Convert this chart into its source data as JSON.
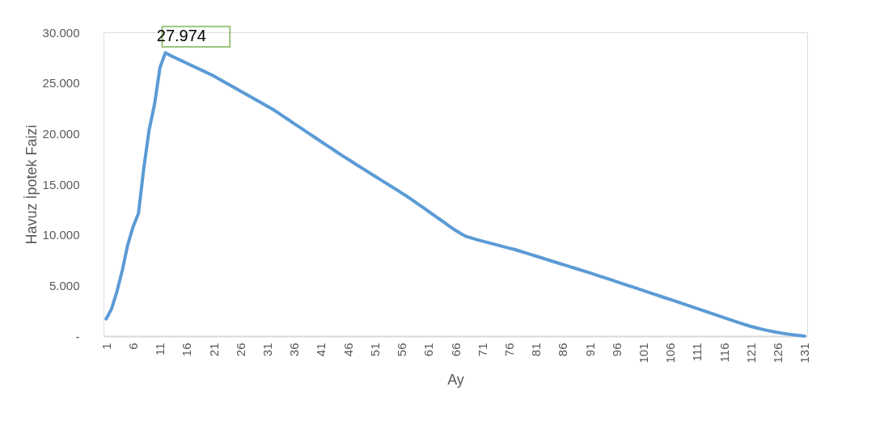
{
  "chart_data": {
    "type": "line",
    "xlabel": "Ay",
    "ylabel": "Havuz İpotek Faizi",
    "categories": [
      "1",
      null,
      null,
      null,
      null,
      "6",
      null,
      null,
      null,
      null,
      "11",
      null,
      null,
      null,
      null,
      "16",
      null,
      null,
      null,
      null,
      "21",
      null,
      null,
      null,
      null,
      "26",
      null,
      null,
      null,
      null,
      "31",
      null,
      null,
      null,
      null,
      "36",
      null,
      null,
      null,
      null,
      "41",
      null,
      null,
      null,
      null,
      "46",
      null,
      null,
      null,
      null,
      "51",
      null,
      null,
      null,
      null,
      "56",
      null,
      null,
      null,
      null,
      "61",
      null,
      null,
      null,
      null,
      "66",
      null,
      null,
      null,
      null,
      "71",
      null,
      null,
      null,
      null,
      "76",
      null,
      null,
      null,
      null,
      "81",
      null,
      null,
      null,
      null,
      "86",
      null,
      null,
      null,
      null,
      "91",
      null,
      null,
      null,
      null,
      "96",
      null,
      null,
      null,
      null,
      "101",
      null,
      null,
      null,
      null,
      "106",
      null,
      null,
      null,
      null,
      "111",
      null,
      null,
      null,
      null,
      "116",
      null,
      null,
      null,
      null,
      "121",
      null,
      null,
      null,
      null,
      "126",
      null,
      null,
      null,
      null,
      "131"
    ],
    "series": [
      {
        "color": "#5b9bd5",
        "values": [
          1700,
          2700,
          4400,
          6500,
          9000,
          10800,
          12100,
          16600,
          20400,
          22900,
          26500,
          27974,
          27700,
          27450,
          27200,
          26950,
          26700,
          26450,
          26200,
          25950,
          25700,
          25400,
          25100,
          24800,
          24500,
          24200,
          23900,
          23600,
          23300,
          23000,
          22700,
          22400,
          22050,
          21690,
          21340,
          20980,
          20630,
          20280,
          19920,
          19570,
          19210,
          18860,
          18510,
          18150,
          17800,
          17470,
          17130,
          16800,
          16470,
          16130,
          15800,
          15470,
          15130,
          14800,
          14470,
          14130,
          13800,
          13430,
          13060,
          12690,
          12310,
          11940,
          11570,
          11200,
          10800,
          10450,
          10130,
          9840,
          9680,
          9530,
          9390,
          9250,
          9110,
          8970,
          8830,
          8690,
          8560,
          8400,
          8230,
          8070,
          7900,
          7740,
          7570,
          7400,
          7240,
          7070,
          6910,
          6740,
          6580,
          6410,
          6250,
          6080,
          5900,
          5730,
          5550,
          5380,
          5200,
          5020,
          4850,
          4670,
          4500,
          4320,
          4140,
          3970,
          3790,
          3620,
          3440,
          3260,
          3080,
          2900,
          2720,
          2540,
          2360,
          2180,
          2000,
          1820,
          1640,
          1460,
          1280,
          1120,
          960,
          820,
          690,
          570,
          460,
          360,
          270,
          190,
          120,
          60,
          0
        ]
      }
    ],
    "ylim": [
      0,
      30000
    ],
    "yticks": [
      {
        "value": 0,
        "label": "-"
      },
      {
        "value": 5000,
        "label": "5.000"
      },
      {
        "value": 10000,
        "label": "10.000"
      },
      {
        "value": 15000,
        "label": "15.000"
      },
      {
        "value": 20000,
        "label": "20.000"
      },
      {
        "value": 25000,
        "label": "25.000"
      },
      {
        "value": 30000,
        "label": "30.000"
      }
    ],
    "grid": false,
    "marker": "none",
    "line_style": "solid",
    "annotations": [
      "27.974"
    ]
  }
}
